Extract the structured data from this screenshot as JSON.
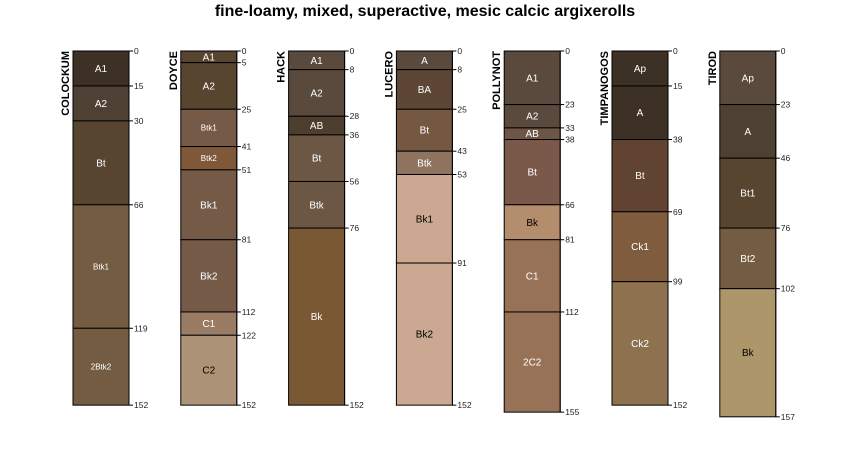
{
  "title": "fine-loamy, mixed, superactive, mesic calcic argixerolls",
  "chart_data": {
    "type": "diagram",
    "title": "fine-loamy, mixed, superactive, mesic calcic argixerolls",
    "depth_unit": "cm",
    "profiles": [
      {
        "name": "COLOCKUM",
        "horizons": [
          {
            "name": "A1",
            "top": 0,
            "bottom": 15,
            "color": "#3d3025",
            "label_color": "#ffffff"
          },
          {
            "name": "A2",
            "top": 15,
            "bottom": 30,
            "color": "#4e4134",
            "label_color": "#ffffff"
          },
          {
            "name": "Bt",
            "top": 30,
            "bottom": 66,
            "color": "#574530",
            "label_color": "#ffffff"
          },
          {
            "name": "Btk1",
            "top": 66,
            "bottom": 119,
            "color": "#735c42",
            "label_color": "#ffffff"
          },
          {
            "name": "2Btk2",
            "top": 119,
            "bottom": 152,
            "color": "#735c42",
            "label_color": "#ffffff"
          }
        ]
      },
      {
        "name": "DOYCE",
        "horizons": [
          {
            "name": "A1",
            "top": 0,
            "bottom": 5,
            "color": "#574530",
            "label_color": "#ffffff"
          },
          {
            "name": "A2",
            "top": 5,
            "bottom": 25,
            "color": "#574530",
            "label_color": "#ffffff"
          },
          {
            "name": "Btk1",
            "top": 25,
            "bottom": 41,
            "color": "#765a48",
            "label_color": "#ffffff"
          },
          {
            "name": "Btk2",
            "top": 41,
            "bottom": 51,
            "color": "#7e5838",
            "label_color": "#ffffff"
          },
          {
            "name": "Bk1",
            "top": 51,
            "bottom": 81,
            "color": "#765a48",
            "label_color": "#ffffff"
          },
          {
            "name": "Bk2",
            "top": 81,
            "bottom": 112,
            "color": "#765a48",
            "label_color": "#ffffff"
          },
          {
            "name": "C1",
            "top": 112,
            "bottom": 122,
            "color": "#9a7b64",
            "label_color": "#ffffff"
          },
          {
            "name": "C2",
            "top": 122,
            "bottom": 152,
            "color": "#ad9478",
            "label_color": "#000000"
          }
        ]
      },
      {
        "name": "HACK",
        "horizons": [
          {
            "name": "A1",
            "top": 0,
            "bottom": 8,
            "color": "#594a3d",
            "label_color": "#ffffff"
          },
          {
            "name": "A2",
            "top": 8,
            "bottom": 28,
            "color": "#594a3d",
            "label_color": "#ffffff"
          },
          {
            "name": "AB",
            "top": 28,
            "bottom": 36,
            "color": "#4e3e2e",
            "label_color": "#ffffff"
          },
          {
            "name": "Bt",
            "top": 36,
            "bottom": 56,
            "color": "#6b5744",
            "label_color": "#ffffff"
          },
          {
            "name": "Btk",
            "top": 56,
            "bottom": 76,
            "color": "#6b5744",
            "label_color": "#ffffff"
          },
          {
            "name": "Bk",
            "top": 76,
            "bottom": 152,
            "color": "#7a5834",
            "label_color": "#ffffff"
          }
        ]
      },
      {
        "name": "LUCERO",
        "horizons": [
          {
            "name": "A",
            "top": 0,
            "bottom": 8,
            "color": "#594a3d",
            "label_color": "#ffffff"
          },
          {
            "name": "BA",
            "top": 8,
            "bottom": 25,
            "color": "#5d4636",
            "label_color": "#ffffff"
          },
          {
            "name": "Bt",
            "top": 25,
            "bottom": 43,
            "color": "#755842",
            "label_color": "#ffffff"
          },
          {
            "name": "Btk",
            "top": 43,
            "bottom": 53,
            "color": "#8e735e",
            "label_color": "#ffffff"
          },
          {
            "name": "Bk1",
            "top": 53,
            "bottom": 91,
            "color": "#caa891",
            "label_color": "#000000"
          },
          {
            "name": "Bk2",
            "top": 91,
            "bottom": 152,
            "color": "#caa891",
            "label_color": "#000000"
          }
        ]
      },
      {
        "name": "POLLYNOT",
        "horizons": [
          {
            "name": "A1",
            "top": 0,
            "bottom": 23,
            "color": "#594a3d",
            "label_color": "#ffffff"
          },
          {
            "name": "A2",
            "top": 23,
            "bottom": 33,
            "color": "#594a3d",
            "label_color": "#ffffff"
          },
          {
            "name": "AB",
            "top": 33,
            "bottom": 38,
            "color": "#6d5646",
            "label_color": "#ffffff"
          },
          {
            "name": "Bt",
            "top": 38,
            "bottom": 66,
            "color": "#7a594a",
            "label_color": "#ffffff"
          },
          {
            "name": "Bk",
            "top": 66,
            "bottom": 81,
            "color": "#b48d6c",
            "label_color": "#000000"
          },
          {
            "name": "C1",
            "top": 81,
            "bottom": 112,
            "color": "#987256",
            "label_color": "#ffffff"
          },
          {
            "name": "2C2",
            "top": 112,
            "bottom": 155,
            "color": "#987256",
            "label_color": "#ffffff"
          }
        ]
      },
      {
        "name": "TIMPANOGOS",
        "horizons": [
          {
            "name": "Ap",
            "top": 0,
            "bottom": 15,
            "color": "#3d3025",
            "label_color": "#ffffff"
          },
          {
            "name": "A",
            "top": 15,
            "bottom": 38,
            "color": "#3d3025",
            "label_color": "#ffffff"
          },
          {
            "name": "Bt",
            "top": 38,
            "bottom": 69,
            "color": "#604330",
            "label_color": "#ffffff"
          },
          {
            "name": "Ck1",
            "top": 69,
            "bottom": 99,
            "color": "#7f5c3e",
            "label_color": "#ffffff"
          },
          {
            "name": "Ck2",
            "top": 99,
            "bottom": 152,
            "color": "#8e7250",
            "label_color": "#ffffff"
          }
        ]
      },
      {
        "name": "TIROD",
        "horizons": [
          {
            "name": "Ap",
            "top": 0,
            "bottom": 23,
            "color": "#594a3d",
            "label_color": "#ffffff"
          },
          {
            "name": "A",
            "top": 23,
            "bottom": 46,
            "color": "#4e4134",
            "label_color": "#ffffff"
          },
          {
            "name": "Bt1",
            "top": 46,
            "bottom": 76,
            "color": "#574530",
            "label_color": "#ffffff"
          },
          {
            "name": "Bt2",
            "top": 76,
            "bottom": 102,
            "color": "#735c42",
            "label_color": "#ffffff"
          },
          {
            "name": "Bk",
            "top": 102,
            "bottom": 157,
            "color": "#ad976a",
            "label_color": "#000000"
          }
        ]
      }
    ]
  }
}
